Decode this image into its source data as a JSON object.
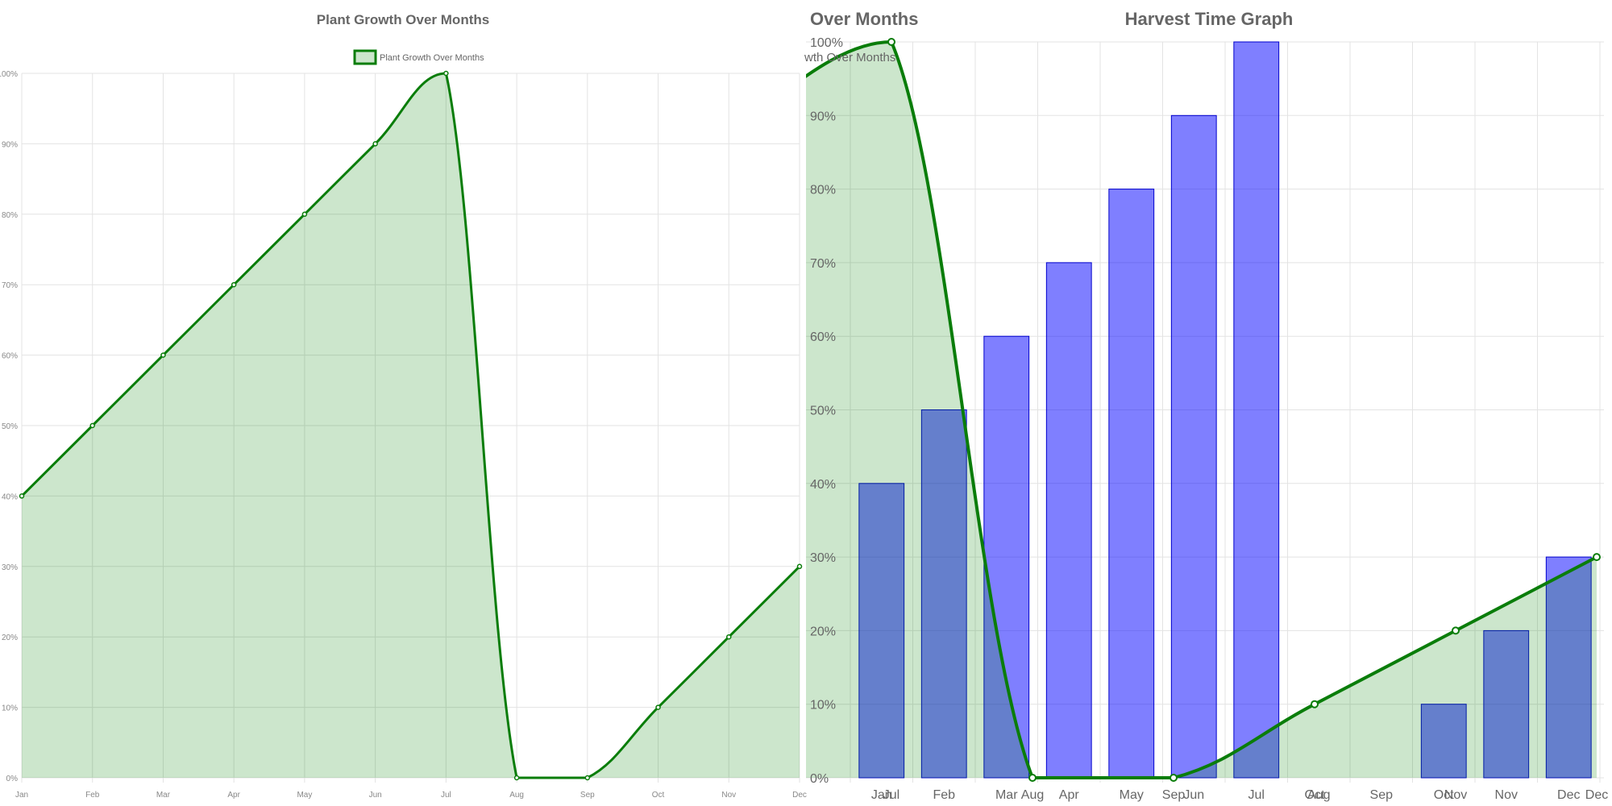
{
  "colors": {
    "line": "#0a7d0a",
    "area_fill": "rgba(0,128,0,0.2)",
    "bar_fill": "rgba(0,0,255,0.5)",
    "bar_border": "#0000cc",
    "grid": "#e3e3e3"
  },
  "chart_data": [
    {
      "type": "area",
      "title": "Plant Growth Over Months",
      "categories": [
        "Jan",
        "Feb",
        "Mar",
        "Apr",
        "May",
        "Jun",
        "Jul",
        "Aug",
        "Sep",
        "Oct",
        "Nov",
        "Dec"
      ],
      "series": [
        {
          "name": "Plant Growth Over Months",
          "values": [
            40,
            50,
            60,
            70,
            80,
            90,
            100,
            0,
            0,
            10,
            20,
            30
          ]
        }
      ],
      "y_tick_labels": [
        "0%",
        "10%",
        "20%",
        "30%",
        "40%",
        "50%",
        "60%",
        "70%",
        "80%",
        "90%",
        "100%"
      ],
      "ylim": [
        0,
        100
      ],
      "grid": true,
      "legend": "top-center"
    },
    {
      "type": "bar",
      "title": "Harvest Time Graph",
      "categories": [
        "Jan",
        "Feb",
        "Mar",
        "Apr",
        "May",
        "Jun",
        "Jul",
        "Aug",
        "Sep",
        "Oct",
        "Nov",
        "Dec"
      ],
      "values": [
        40,
        50,
        60,
        70,
        80,
        90,
        100,
        0,
        0,
        10,
        20,
        30
      ],
      "y_tick_labels": [
        "0%",
        "10%",
        "20%",
        "30%",
        "40%",
        "50%",
        "60%",
        "70%",
        "80%",
        "90%",
        "100%"
      ],
      "ylim": [
        0,
        100
      ],
      "grid": true
    },
    {
      "type": "area",
      "title": "Plant Growth Over Months",
      "title_visible": "Over Months",
      "legend_visible": "wth Over Months",
      "note": "overlapping, partially clipped copy of the growth chart",
      "categories": [
        "Jul",
        "Aug",
        "Sep",
        "Oct",
        "Nov",
        "Dec"
      ],
      "series": [
        {
          "name": "Plant Growth Over Months",
          "values": [
            100,
            0,
            0,
            10,
            20,
            30
          ]
        }
      ],
      "ylim": [
        0,
        100
      ]
    }
  ]
}
